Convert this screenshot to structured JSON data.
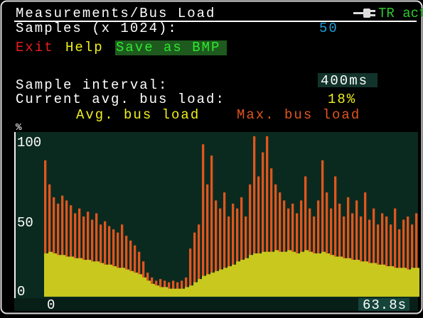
{
  "header": {
    "title": "Measurements/Bus Load",
    "status": "TR act"
  },
  "samples": {
    "label": "Samples (x 1024):",
    "value": "50"
  },
  "menu": [
    "Exit",
    "Help",
    "Save as BMP"
  ],
  "interval": {
    "label": "Sample interval:",
    "value": "400ms"
  },
  "current": {
    "label": "Current avg. bus load:",
    "value": "18%"
  },
  "chart": {
    "type": "bar",
    "y_unit": "%",
    "ylim": [
      0,
      100
    ],
    "yticks": [
      0,
      50,
      100
    ],
    "xlim": [
      0,
      63.8
    ],
    "xticks": [
      0,
      {
        "value": 63.8,
        "label": "63.8s"
      }
    ],
    "series": [
      {
        "name": "Avg. bus load",
        "color": "#c8c81e",
        "values": [
          27,
          28,
          27,
          26,
          26,
          25,
          25,
          24,
          24,
          23,
          23,
          22,
          22,
          21,
          20,
          20,
          19,
          18,
          18,
          17,
          16,
          15,
          14,
          12,
          10,
          8,
          7,
          6,
          6,
          5,
          5,
          5,
          5,
          6,
          7,
          9,
          11,
          13,
          14,
          15,
          16,
          17,
          18,
          19,
          20,
          22,
          23,
          24,
          26,
          27,
          27,
          28,
          28,
          28,
          29,
          28,
          28,
          29,
          28,
          27,
          28,
          29,
          28,
          27,
          27,
          28,
          27,
          26,
          25,
          25,
          24,
          24,
          23,
          23,
          22,
          22,
          21,
          21,
          20,
          20,
          19,
          19,
          18,
          18,
          18,
          17,
          18,
          18
        ]
      },
      {
        "name": "Max. bus load",
        "color": "#e0561e",
        "values": [
          85,
          70,
          62,
          58,
          63,
          60,
          57,
          52,
          55,
          50,
          53,
          48,
          52,
          45,
          47,
          44,
          42,
          40,
          45,
          38,
          35,
          32,
          28,
          22,
          15,
          12,
          10,
          11,
          10,
          9,
          10,
          9,
          10,
          12,
          30,
          40,
          45,
          95,
          70,
          88,
          60,
          55,
          65,
          50,
          58,
          55,
          62,
          50,
          70,
          100,
          75,
          90,
          100,
          80,
          70,
          65,
          60,
          55,
          58,
          52,
          60,
          75,
          55,
          50,
          60,
          85,
          65,
          55,
          75,
          58,
          50,
          62,
          52,
          60,
          50,
          65,
          48,
          55,
          45,
          52,
          50,
          45,
          55,
          42,
          48,
          50,
          45,
          52
        ]
      }
    ]
  }
}
